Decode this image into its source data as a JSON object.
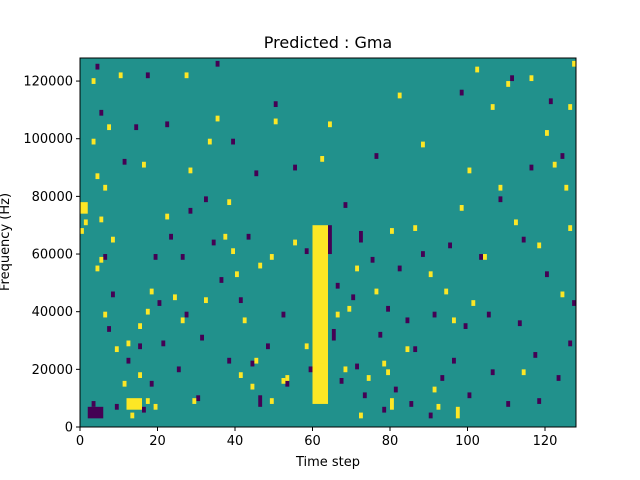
{
  "chart_data": {
    "type": "heatmap",
    "title": "Predicted : Gma",
    "xlabel": "Time step",
    "ylabel": "Frequency (Hz)",
    "xlim": [
      0,
      128
    ],
    "ylim": [
      0,
      128000
    ],
    "x_ticks": [
      0,
      20,
      40,
      60,
      80,
      100,
      120
    ],
    "y_ticks": [
      0,
      20000,
      40000,
      60000,
      80000,
      100000,
      120000
    ],
    "x_tick_labels": [
      "0",
      "20",
      "40",
      "60",
      "80",
      "100",
      "120"
    ],
    "y_tick_labels": [
      "0",
      "20000",
      "40000",
      "60000",
      "80000",
      "100000",
      "120000"
    ],
    "grid": false,
    "levels": {
      "low": {
        "value": -1,
        "color": "#440154"
      },
      "mid": {
        "value": 0,
        "color": "#21918c"
      },
      "high": {
        "value": 1,
        "color": "#fde725"
      }
    },
    "background_value": 0,
    "high_cells": [
      [
        0,
        74000,
        2,
        4000
      ],
      [
        0,
        67000,
        1,
        2000
      ],
      [
        1,
        70000,
        1,
        2000
      ],
      [
        3,
        119000,
        1,
        2000
      ],
      [
        3,
        98000,
        1,
        2000
      ],
      [
        4,
        86000,
        1,
        2000
      ],
      [
        4,
        54000,
        1,
        2000
      ],
      [
        5,
        71000,
        1,
        2000
      ],
      [
        5,
        57000,
        1,
        2000
      ],
      [
        6,
        82000,
        1,
        2000
      ],
      [
        6,
        38000,
        1,
        2000
      ],
      [
        7,
        103000,
        1,
        2000
      ],
      [
        8,
        64000,
        1,
        2000
      ],
      [
        9,
        26000,
        1,
        2000
      ],
      [
        10,
        121000,
        1,
        2000
      ],
      [
        11,
        14000,
        1,
        2000
      ],
      [
        12,
        28000,
        1,
        2000
      ],
      [
        12,
        6000,
        4,
        4000
      ],
      [
        13,
        3000,
        1,
        2000
      ],
      [
        15,
        34000,
        1,
        2000
      ],
      [
        15,
        17000,
        1,
        2000
      ],
      [
        16,
        90000,
        1,
        2000
      ],
      [
        17,
        39000,
        1,
        2000
      ],
      [
        17,
        8000,
        1,
        2000
      ],
      [
        18,
        46000,
        1,
        2000
      ],
      [
        19,
        6000,
        1,
        2000
      ],
      [
        22,
        72000,
        1,
        2000
      ],
      [
        24,
        44000,
        1,
        2000
      ],
      [
        26,
        36000,
        1,
        2000
      ],
      [
        27,
        121000,
        1,
        2000
      ],
      [
        28,
        88000,
        1,
        2000
      ],
      [
        29,
        8000,
        1,
        2000
      ],
      [
        32,
        43000,
        1,
        2000
      ],
      [
        33,
        98000,
        1,
        2000
      ],
      [
        35,
        106000,
        1,
        2000
      ],
      [
        37,
        65000,
        1,
        2000
      ],
      [
        38,
        77000,
        1,
        2000
      ],
      [
        39,
        60000,
        1,
        2000
      ],
      [
        40,
        52000,
        1,
        2000
      ],
      [
        41,
        17000,
        1,
        2000
      ],
      [
        42,
        36000,
        1,
        2000
      ],
      [
        44,
        13000,
        1,
        2000
      ],
      [
        45,
        22000,
        1,
        2000
      ],
      [
        46,
        55000,
        1,
        2000
      ],
      [
        49,
        58000,
        1,
        2000
      ],
      [
        49,
        8000,
        1,
        2000
      ],
      [
        50,
        105000,
        1,
        2000
      ],
      [
        52,
        15000,
        1,
        2000
      ],
      [
        53,
        16000,
        1,
        2000
      ],
      [
        55,
        63000,
        1,
        2000
      ],
      [
        58,
        27000,
        1,
        2000
      ],
      [
        60,
        8000,
        4,
        62000
      ],
      [
        61,
        22000,
        2,
        2000
      ],
      [
        62,
        92000,
        1,
        2000
      ],
      [
        63,
        15000,
        1,
        2000
      ],
      [
        64,
        104000,
        1,
        2000
      ],
      [
        66,
        38000,
        1,
        2000
      ],
      [
        68,
        19000,
        1,
        2000
      ],
      [
        69,
        40000,
        1,
        2000
      ],
      [
        71,
        54000,
        1,
        2000
      ],
      [
        72,
        3000,
        1,
        2000
      ],
      [
        74,
        16000,
        1,
        2000
      ],
      [
        76,
        46000,
        1,
        2000
      ],
      [
        78,
        21000,
        1,
        2000
      ],
      [
        79,
        18000,
        1,
        2000
      ],
      [
        80,
        6000,
        1,
        4000
      ],
      [
        80,
        67000,
        1,
        2000
      ],
      [
        82,
        114000,
        1,
        2000
      ],
      [
        84,
        26000,
        1,
        2000
      ],
      [
        86,
        68000,
        1,
        2000
      ],
      [
        88,
        97000,
        1,
        2000
      ],
      [
        90,
        52000,
        1,
        2000
      ],
      [
        91,
        12000,
        1,
        2000
      ],
      [
        92,
        6000,
        1,
        2000
      ],
      [
        94,
        46000,
        1,
        2000
      ],
      [
        96,
        36000,
        1,
        2000
      ],
      [
        97,
        3000,
        1,
        4000
      ],
      [
        98,
        75000,
        1,
        2000
      ],
      [
        100,
        88000,
        1,
        2000
      ],
      [
        101,
        42000,
        1,
        2000
      ],
      [
        102,
        123000,
        1,
        2000
      ],
      [
        104,
        58000,
        1,
        2000
      ],
      [
        106,
        110000,
        1,
        2000
      ],
      [
        108,
        82000,
        1,
        2000
      ],
      [
        110,
        118000,
        1,
        2000
      ],
      [
        112,
        70000,
        1,
        2000
      ],
      [
        114,
        18000,
        1,
        2000
      ],
      [
        116,
        120000,
        1,
        2000
      ],
      [
        118,
        62000,
        1,
        2000
      ],
      [
        120,
        101000,
        1,
        2000
      ],
      [
        122,
        90000,
        1,
        2000
      ],
      [
        124,
        45000,
        1,
        2000
      ],
      [
        125,
        82000,
        1,
        2000
      ],
      [
        126,
        68000,
        1,
        2000
      ],
      [
        126,
        110000,
        1,
        2000
      ],
      [
        127,
        125000,
        1,
        2000
      ]
    ],
    "low_cells": [
      [
        2,
        3000,
        4,
        4000
      ],
      [
        3,
        7000,
        1,
        2000
      ],
      [
        4,
        124000,
        1,
        2000
      ],
      [
        5,
        108000,
        1,
        2000
      ],
      [
        6,
        58000,
        1,
        2000
      ],
      [
        7,
        33000,
        1,
        2000
      ],
      [
        8,
        45000,
        1,
        2000
      ],
      [
        9,
        6000,
        1,
        2000
      ],
      [
        11,
        91000,
        1,
        2000
      ],
      [
        12,
        22000,
        1,
        2000
      ],
      [
        14,
        103000,
        1,
        2000
      ],
      [
        15,
        27000,
        1,
        2000
      ],
      [
        16,
        5000,
        1,
        2000
      ],
      [
        17,
        121000,
        1,
        2000
      ],
      [
        18,
        14000,
        1,
        2000
      ],
      [
        19,
        58000,
        1,
        2000
      ],
      [
        20,
        42000,
        1,
        2000
      ],
      [
        21,
        28000,
        1,
        2000
      ],
      [
        22,
        104000,
        1,
        2000
      ],
      [
        23,
        65000,
        1,
        2000
      ],
      [
        25,
        19000,
        1,
        2000
      ],
      [
        26,
        58000,
        1,
        2000
      ],
      [
        27,
        38000,
        1,
        2000
      ],
      [
        28,
        74000,
        1,
        2000
      ],
      [
        30,
        9000,
        1,
        2000
      ],
      [
        31,
        30000,
        1,
        2000
      ],
      [
        32,
        78000,
        1,
        2000
      ],
      [
        34,
        63000,
        1,
        2000
      ],
      [
        35,
        125000,
        1,
        2000
      ],
      [
        36,
        50000,
        1,
        2000
      ],
      [
        38,
        22000,
        1,
        2000
      ],
      [
        39,
        98000,
        1,
        2000
      ],
      [
        41,
        43000,
        1,
        2000
      ],
      [
        43,
        65000,
        1,
        2000
      ],
      [
        44,
        21000,
        1,
        2000
      ],
      [
        45,
        87000,
        1,
        2000
      ],
      [
        46,
        7000,
        1,
        4000
      ],
      [
        48,
        27000,
        1,
        2000
      ],
      [
        50,
        111000,
        1,
        2000
      ],
      [
        52,
        38000,
        1,
        2000
      ],
      [
        53,
        14000,
        1,
        2000
      ],
      [
        55,
        89000,
        1,
        2000
      ],
      [
        58,
        60000,
        1,
        2000
      ],
      [
        59,
        19000,
        1,
        2000
      ],
      [
        64,
        60000,
        1,
        10000
      ],
      [
        65,
        30000,
        1,
        4000
      ],
      [
        66,
        48000,
        1,
        2000
      ],
      [
        67,
        15000,
        1,
        2000
      ],
      [
        68,
        76000,
        1,
        2000
      ],
      [
        70,
        44000,
        1,
        2000
      ],
      [
        71,
        20000,
        1,
        2000
      ],
      [
        72,
        64000,
        1,
        4000
      ],
      [
        73,
        10000,
        1,
        2000
      ],
      [
        75,
        57000,
        1,
        2000
      ],
      [
        76,
        93000,
        1,
        2000
      ],
      [
        77,
        31000,
        1,
        2000
      ],
      [
        78,
        5000,
        1,
        2000
      ],
      [
        79,
        40000,
        1,
        2000
      ],
      [
        81,
        12000,
        1,
        2000
      ],
      [
        82,
        54000,
        1,
        2000
      ],
      [
        84,
        36000,
        1,
        2000
      ],
      [
        85,
        7000,
        1,
        2000
      ],
      [
        86,
        26000,
        1,
        2000
      ],
      [
        88,
        59000,
        1,
        2000
      ],
      [
        90,
        3000,
        1,
        2000
      ],
      [
        91,
        38000,
        1,
        2000
      ],
      [
        93,
        16000,
        1,
        2000
      ],
      [
        95,
        62000,
        1,
        2000
      ],
      [
        96,
        22000,
        1,
        2000
      ],
      [
        98,
        115000,
        1,
        2000
      ],
      [
        99,
        34000,
        1,
        2000
      ],
      [
        100,
        10000,
        1,
        2000
      ],
      [
        103,
        58000,
        1,
        2000
      ],
      [
        105,
        38000,
        1,
        2000
      ],
      [
        106,
        18000,
        1,
        2000
      ],
      [
        108,
        78000,
        1,
        2000
      ],
      [
        110,
        7000,
        1,
        2000
      ],
      [
        111,
        120000,
        1,
        2000
      ],
      [
        113,
        35000,
        1,
        2000
      ],
      [
        114,
        64000,
        1,
        2000
      ],
      [
        116,
        89000,
        1,
        2000
      ],
      [
        117,
        24000,
        1,
        2000
      ],
      [
        118,
        8000,
        1,
        2000
      ],
      [
        120,
        52000,
        1,
        2000
      ],
      [
        121,
        112000,
        1,
        2000
      ],
      [
        123,
        16000,
        1,
        2000
      ],
      [
        124,
        93000,
        1,
        2000
      ],
      [
        126,
        28000,
        1,
        2000
      ],
      [
        127,
        42000,
        1,
        2000
      ]
    ]
  }
}
